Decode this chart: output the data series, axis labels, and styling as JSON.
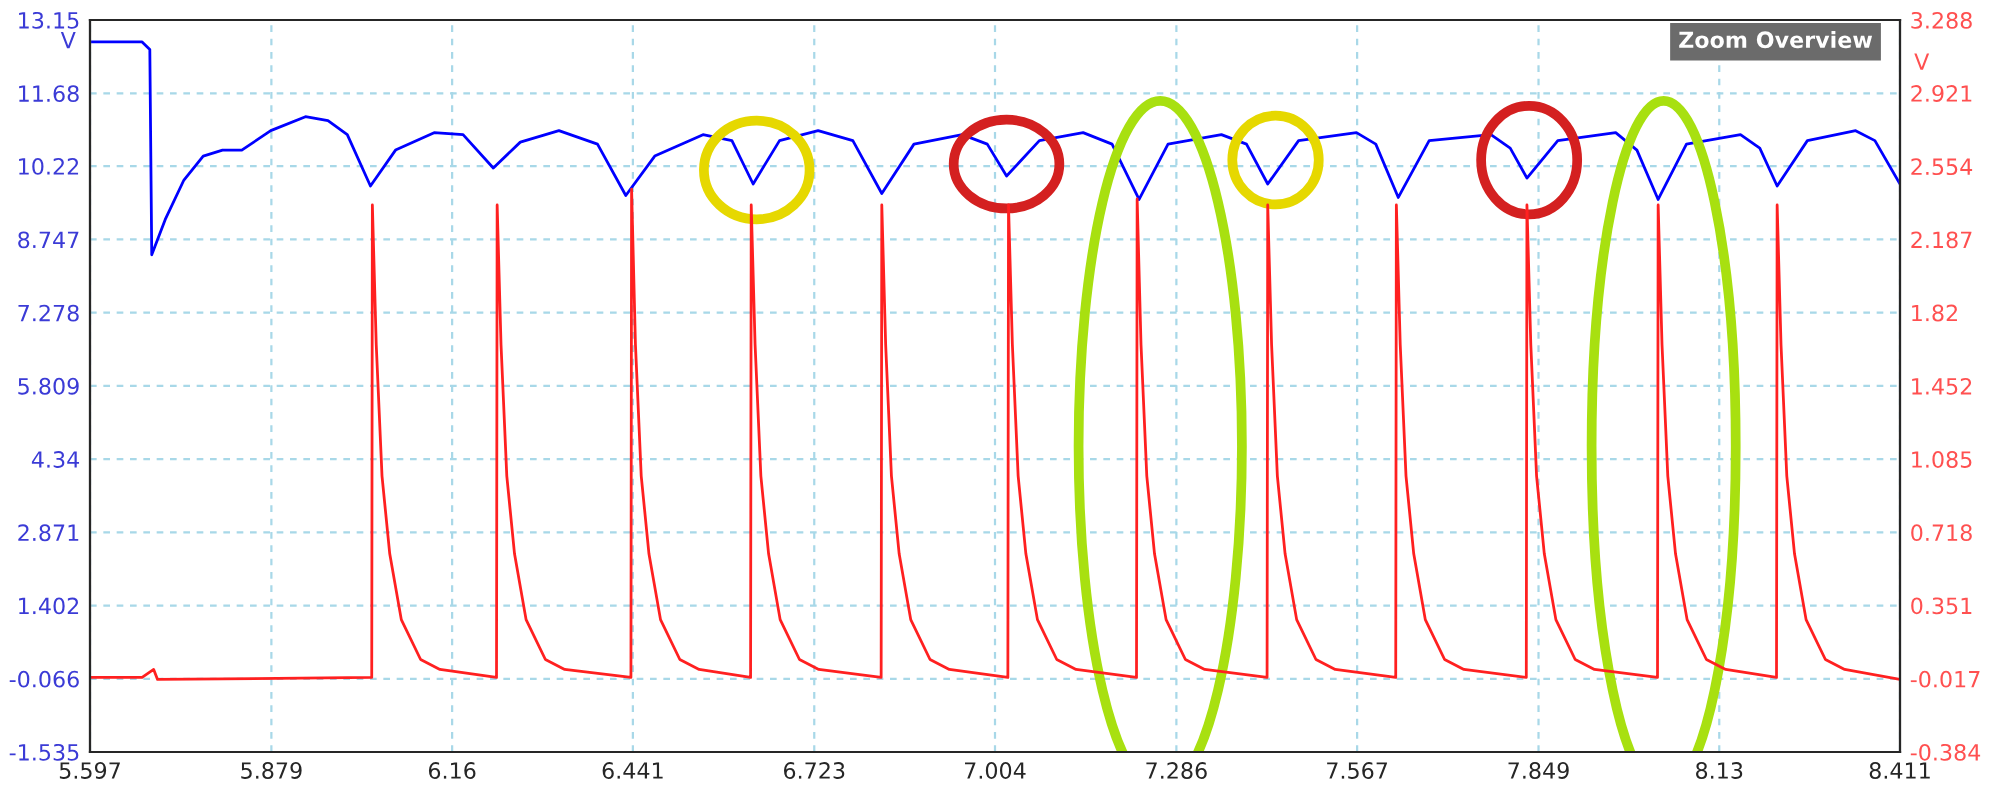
{
  "chart_data": {
    "type": "line",
    "ylabel": "V",
    "y2label": "V",
    "xlim": [
      5.597,
      8.411
    ],
    "xticks": [
      5.597,
      5.879,
      6.16,
      6.441,
      6.723,
      7.004,
      7.286,
      7.567,
      7.849,
      8.13,
      8.411
    ],
    "ylim": [
      -1.535,
      13.15
    ],
    "yticks": [
      -1.535,
      -0.066,
      1.402,
      2.871,
      4.34,
      5.809,
      7.278,
      8.747,
      10.22,
      11.68,
      13.15
    ],
    "y2lim": [
      -0.384,
      3.288
    ],
    "y2ticks": [
      -0.384,
      -0.017,
      0.351,
      0.718,
      1.085,
      1.452,
      1.82,
      2.187,
      2.554,
      2.921,
      3.288
    ],
    "grid": true,
    "annotations": [
      "Zoom Overview"
    ],
    "series": [
      {
        "color": "#0000ff",
        "x": [
          5.597,
          5.678,
          5.69,
          5.693,
          5.714,
          5.743,
          5.773,
          5.803,
          5.833,
          5.878,
          5.932,
          5.967,
          5.997,
          6.033,
          6.072,
          6.132,
          6.177,
          6.224,
          6.266,
          6.326,
          6.386,
          6.43,
          6.475,
          6.55,
          6.595,
          6.628,
          6.669,
          6.729,
          6.783,
          6.828,
          6.878,
          6.953,
          6.992,
          7.022,
          7.073,
          7.141,
          7.186,
          7.228,
          7.273,
          7.356,
          7.395,
          7.428,
          7.476,
          7.566,
          7.596,
          7.631,
          7.679,
          7.775,
          7.805,
          7.831,
          7.879,
          7.969,
          8.002,
          8.035,
          8.079,
          8.163,
          8.193,
          8.22,
          8.267,
          8.342,
          8.372,
          8.411
        ],
        "values": [
          12.71,
          12.71,
          12.56,
          8.44,
          9.15,
          9.94,
          10.42,
          10.54,
          10.54,
          10.93,
          11.21,
          11.13,
          10.85,
          9.82,
          10.54,
          10.89,
          10.85,
          10.18,
          10.7,
          10.93,
          10.66,
          9.63,
          10.42,
          10.85,
          10.73,
          9.86,
          10.73,
          10.93,
          10.73,
          9.67,
          10.66,
          10.85,
          10.66,
          10.02,
          10.73,
          10.89,
          10.66,
          9.55,
          10.66,
          10.85,
          10.66,
          9.86,
          10.73,
          10.89,
          10.66,
          9.59,
          10.73,
          10.85,
          10.58,
          9.98,
          10.73,
          10.89,
          10.54,
          9.55,
          10.66,
          10.85,
          10.58,
          9.82,
          10.73,
          10.93,
          10.73,
          9.86
        ]
      },
      {
        "color": "#ff2020",
        "axis": "y2",
        "x": [
          5.597,
          5.678,
          5.696,
          5.702,
          6.035,
          6.036,
          6.042,
          6.051,
          6.063,
          6.081,
          6.111,
          6.141,
          6.229,
          6.23,
          6.236,
          6.245,
          6.257,
          6.275,
          6.305,
          6.335,
          6.438,
          6.439,
          6.445,
          6.454,
          6.466,
          6.484,
          6.514,
          6.544,
          6.624,
          6.625,
          6.631,
          6.64,
          6.652,
          6.67,
          6.7,
          6.73,
          6.827,
          6.828,
          6.834,
          6.843,
          6.855,
          6.873,
          6.903,
          6.933,
          7.024,
          7.025,
          7.031,
          7.04,
          7.052,
          7.07,
          7.1,
          7.13,
          7.224,
          7.225,
          7.231,
          7.24,
          7.252,
          7.27,
          7.3,
          7.33,
          7.427,
          7.428,
          7.434,
          7.443,
          7.455,
          7.473,
          7.503,
          7.533,
          7.627,
          7.628,
          7.634,
          7.643,
          7.655,
          7.673,
          7.703,
          7.733,
          7.83,
          7.831,
          7.837,
          7.846,
          7.858,
          7.876,
          7.906,
          7.936,
          8.034,
          8.035,
          8.041,
          8.05,
          8.062,
          8.08,
          8.11,
          8.14,
          8.219,
          8.22,
          8.226,
          8.235,
          8.247,
          8.265,
          8.295,
          8.325,
          8.411
        ],
        "values": [
          -0.01,
          -0.01,
          0.03,
          -0.02,
          -0.01,
          2.36,
          1.66,
          1.0,
          0.61,
          0.28,
          0.08,
          0.03,
          -0.01,
          2.36,
          1.66,
          1.0,
          0.61,
          0.28,
          0.08,
          0.03,
          -0.01,
          2.44,
          1.66,
          1.0,
          0.61,
          0.28,
          0.08,
          0.03,
          -0.01,
          2.36,
          1.66,
          1.0,
          0.61,
          0.28,
          0.08,
          0.03,
          -0.01,
          2.36,
          1.66,
          1.0,
          0.61,
          0.28,
          0.08,
          0.03,
          -0.01,
          2.36,
          1.66,
          1.0,
          0.61,
          0.28,
          0.08,
          0.03,
          -0.01,
          2.39,
          1.66,
          1.0,
          0.61,
          0.28,
          0.08,
          0.03,
          -0.01,
          2.36,
          1.66,
          1.0,
          0.61,
          0.28,
          0.08,
          0.03,
          -0.01,
          2.36,
          1.66,
          1.0,
          0.61,
          0.28,
          0.08,
          0.03,
          -0.01,
          2.36,
          1.66,
          1.0,
          0.61,
          0.28,
          0.08,
          0.03,
          -0.01,
          2.36,
          1.66,
          1.0,
          0.61,
          0.28,
          0.08,
          0.03,
          -0.01,
          2.36,
          1.66,
          1.0,
          0.61,
          0.28,
          0.08,
          0.03,
          -0.02
        ]
      }
    ]
  }
}
